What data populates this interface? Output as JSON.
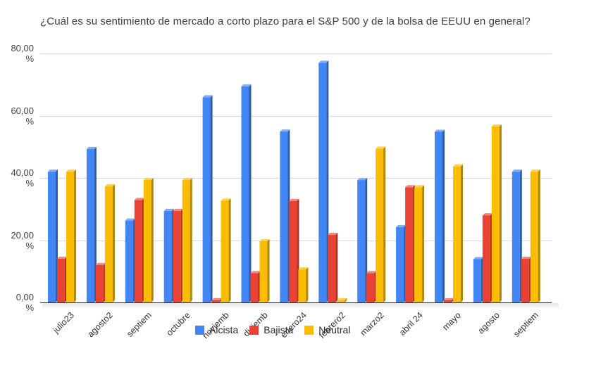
{
  "title": "¿Cuál es su sentimiento de mercado a corto plazo para el S&P 500 y de la bolsa de EEUU en general?",
  "colors": {
    "alcista": "#4285F4",
    "bajista": "#EA4335",
    "neutral": "#FBBC04",
    "gridline": "#d9d9d9",
    "axis": "#333333",
    "title_text": "#3c3c3c"
  },
  "chart_data": {
    "type": "bar",
    "title": "¿Cuál es su sentimiento de mercado a corto plazo para el S&P 500 y de la bolsa de EEUU en general?",
    "categories": [
      "julio23",
      "agosto2",
      "septiem",
      "octubre",
      "noviemb",
      "diciemb",
      "enero24",
      "febrero2",
      "marzo2",
      "abril 24",
      "mayo",
      "agosto",
      "septiem"
    ],
    "series": [
      {
        "name": "Alcista",
        "color": "#4285F4",
        "side_color": "#2E5DA6",
        "top_color": "#7FACF7",
        "values": [
          42.0,
          49.3,
          26.3,
          29.4,
          65.9,
          69.4,
          54.9,
          77.0,
          39.3,
          24.2,
          54.8,
          13.9,
          42.0
        ]
      },
      {
        "name": "Bajista",
        "color": "#EA4335",
        "side_color": "#B03021",
        "top_color": "#F0867D",
        "values": [
          14.0,
          12.0,
          32.9,
          29.4,
          0.7,
          9.4,
          32.6,
          21.7,
          9.4,
          37.0,
          0.7,
          28.0,
          14.0
        ]
      },
      {
        "name": "Neutral",
        "color": "#FBBC04",
        "side_color": "#B08503",
        "top_color": "#FDD14E",
        "values": [
          42.0,
          37.3,
          39.3,
          39.3,
          32.7,
          19.7,
          10.6,
          0.7,
          49.4,
          37.0,
          43.7,
          56.5,
          42.0
        ]
      }
    ],
    "xlabel": "",
    "ylabel": "",
    "ylim": [
      0,
      80
    ],
    "y_ticks": {
      "values": [
        0,
        20,
        40,
        60,
        80
      ],
      "labels": [
        "0,00",
        "20,00",
        "40,00",
        "60,00",
        "80,00"
      ],
      "suffix": "%"
    },
    "grid": true,
    "legend_position": "bottom-center",
    "x_label_rotation": -45
  }
}
